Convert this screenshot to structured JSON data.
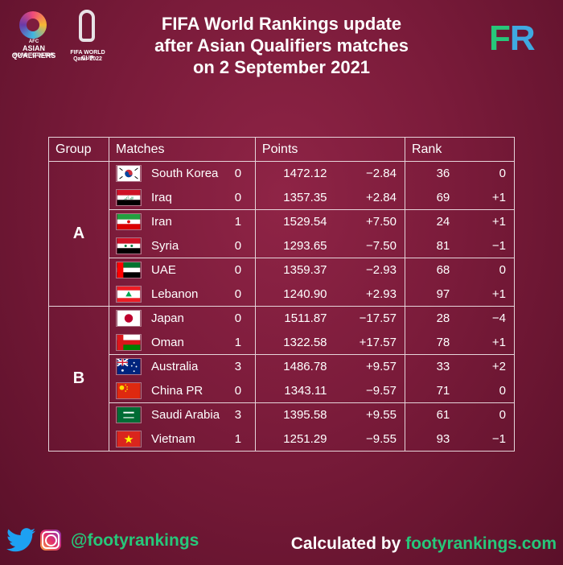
{
  "header": {
    "title_lines": [
      "FIFA World Rankings update",
      "after Asian Qualifiers matches",
      "on 2 September 2021"
    ],
    "afc_logo": {
      "line1": "AFC",
      "line2": "ASIAN QUALIFIERS",
      "line3": "ROAD TO QATAR"
    },
    "wc_logo": {
      "line1": "FIFA WORLD CUP",
      "line2": "Qatar 2022"
    },
    "fr_logo": {
      "f": "F",
      "r": "R",
      "f_color": "#27c77a",
      "r_color": "#3fa9e0"
    }
  },
  "table": {
    "headers": {
      "group": "Group",
      "matches": "Matches",
      "points": "Points",
      "rank": "Rank"
    },
    "groups": [
      {
        "name": "A",
        "matches": [
          [
            {
              "team": "South Korea",
              "flag": "south-korea-flag-icon",
              "goals": "0",
              "points": "1472.12",
              "points_change": "−2.84",
              "rank": "36",
              "rank_change": "0"
            },
            {
              "team": "Iraq",
              "flag": "iraq-flag-icon",
              "goals": "0",
              "points": "1357.35",
              "points_change": "+2.84",
              "rank": "69",
              "rank_change": "+1"
            }
          ],
          [
            {
              "team": "Iran",
              "flag": "iran-flag-icon",
              "goals": "1",
              "points": "1529.54",
              "points_change": "+7.50",
              "rank": "24",
              "rank_change": "+1"
            },
            {
              "team": "Syria",
              "flag": "syria-flag-icon",
              "goals": "0",
              "points": "1293.65",
              "points_change": "−7.50",
              "rank": "81",
              "rank_change": "−1"
            }
          ],
          [
            {
              "team": "UAE",
              "flag": "uae-flag-icon",
              "goals": "0",
              "points": "1359.37",
              "points_change": "−2.93",
              "rank": "68",
              "rank_change": "0"
            },
            {
              "team": "Lebanon",
              "flag": "lebanon-flag-icon",
              "goals": "0",
              "points": "1240.90",
              "points_change": "+2.93",
              "rank": "97",
              "rank_change": "+1"
            }
          ]
        ]
      },
      {
        "name": "B",
        "matches": [
          [
            {
              "team": "Japan",
              "flag": "japan-flag-icon",
              "goals": "0",
              "points": "1511.87",
              "points_change": "−17.57",
              "rank": "28",
              "rank_change": "−4"
            },
            {
              "team": "Oman",
              "flag": "oman-flag-icon",
              "goals": "1",
              "points": "1322.58",
              "points_change": "+17.57",
              "rank": "78",
              "rank_change": "+1"
            }
          ],
          [
            {
              "team": "Australia",
              "flag": "australia-flag-icon",
              "goals": "3",
              "points": "1486.78",
              "points_change": "+9.57",
              "rank": "33",
              "rank_change": "+2"
            },
            {
              "team": "China PR",
              "flag": "china-flag-icon",
              "goals": "0",
              "points": "1343.11",
              "points_change": "−9.57",
              "rank": "71",
              "rank_change": "0"
            }
          ],
          [
            {
              "team": "Saudi Arabia",
              "flag": "saudi-arabia-flag-icon",
              "goals": "3",
              "points": "1395.58",
              "points_change": "+9.55",
              "rank": "61",
              "rank_change": "0"
            },
            {
              "team": "Vietnam",
              "flag": "vietnam-flag-icon",
              "goals": "1",
              "points": "1251.29",
              "points_change": "−9.55",
              "rank": "93",
              "rank_change": "−1"
            }
          ]
        ]
      }
    ]
  },
  "footer": {
    "handle": "@footyrankings",
    "calc_prefix": "Calculated by ",
    "calc_site": "footyrankings.com",
    "icons": [
      "twitter-icon",
      "instagram-icon"
    ]
  },
  "colors": {
    "background": "#7a1b3a",
    "accent_green": "#27c77a",
    "accent_blue": "#3fa9e0"
  }
}
